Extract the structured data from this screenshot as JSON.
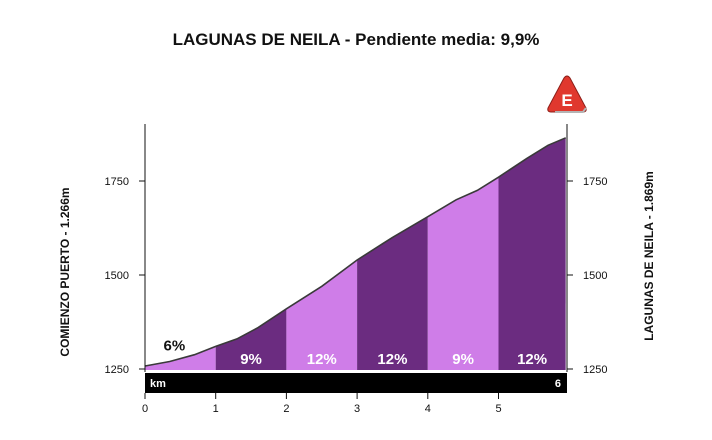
{
  "title": "LAGUNAS DE NEILA - Pendiente media: 9,9%",
  "chart_data": {
    "type": "area",
    "title": "LAGUNAS DE NEILA - Pendiente media: 9,9%",
    "left_label": "COMIENZO PUERTO - 1.266m",
    "right_label": "LAGUNAS DE NEILA - 1.869m",
    "x_ticks": [
      0,
      1,
      2,
      3,
      4,
      5
    ],
    "x_unit": "km",
    "x_end_label": "6",
    "y_ticks": [
      1250,
      1500,
      1750
    ],
    "xlim": [
      0,
      5.95
    ],
    "ylim": [
      1230,
      1880
    ],
    "profile": [
      [
        0,
        1258
      ],
      [
        0.35,
        1270
      ],
      [
        0.7,
        1288
      ],
      [
        1.0,
        1310
      ],
      [
        1.3,
        1330
      ],
      [
        1.6,
        1360
      ],
      [
        2.0,
        1410
      ],
      [
        2.5,
        1470
      ],
      [
        3.0,
        1540
      ],
      [
        3.5,
        1600
      ],
      [
        4.0,
        1655
      ],
      [
        4.4,
        1700
      ],
      [
        4.7,
        1725
      ],
      [
        5.0,
        1760
      ],
      [
        5.4,
        1810
      ],
      [
        5.7,
        1845
      ],
      [
        5.95,
        1865
      ]
    ],
    "segments": [
      {
        "from": 0,
        "to": 1,
        "gradient": "6%",
        "color": "#cf7de8"
      },
      {
        "from": 1,
        "to": 2,
        "gradient": "9%",
        "color": "#6b2c80"
      },
      {
        "from": 2,
        "to": 3,
        "gradient": "12%",
        "color": "#cf7de8"
      },
      {
        "from": 3,
        "to": 4,
        "gradient": "12%",
        "color": "#6b2c80"
      },
      {
        "from": 4,
        "to": 5,
        "gradient": "9%",
        "color": "#cf7de8"
      },
      {
        "from": 5,
        "to": 5.95,
        "gradient": "12%",
        "color": "#6b2c80"
      }
    ],
    "badge": "E",
    "colors": {
      "light": "#cf7de8",
      "dark": "#6b2c80",
      "badge": "#e0382e",
      "bar": "#000000"
    }
  }
}
